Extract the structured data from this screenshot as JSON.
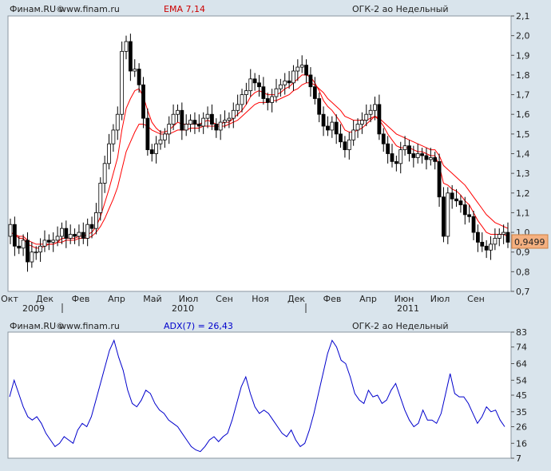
{
  "colors": {
    "background": "#d9e4ec",
    "plot_bg": "#ffffff",
    "candle": "#000000",
    "ema": "#ff0000",
    "adx": "#0000cc",
    "header_red": "#cc0000",
    "header_blue": "#0000cc",
    "price_badge": "#f4b080"
  },
  "price_panel": {
    "source": "Финам.RU©",
    "site": "www.finam.ru",
    "indicator": "EMA 7,14",
    "instrument": "ОГК-2 ао Недельный",
    "current_price": "0,9499"
  },
  "adx_panel": {
    "source": "Финам.RU©",
    "site": "www.finam.ru",
    "indicator": "ADX(7) = 26,43",
    "instrument": "ОГК-2 ао Недельный"
  },
  "chart_data": [
    {
      "type": "candlestick",
      "title": "ОГК-2 ао Недельный",
      "indicator": "EMA 7,14",
      "ylim": [
        0.7,
        2.1
      ],
      "y_ticks": [
        "2,1",
        "2,0",
        "1,9",
        "1,8",
        "1,7",
        "1,6",
        "1,5",
        "1,4",
        "1,3",
        "1,2",
        "1,1",
        "1,0",
        "0,9",
        "0,8",
        "0,7"
      ],
      "x_ticks": [
        "Окт",
        "Дек",
        "Фев",
        "Апр",
        "Май",
        "Июл",
        "Сен",
        "Ноя",
        "Дек",
        "Фев",
        "Апр",
        "Июн",
        "Июл",
        "Сен"
      ],
      "years": [
        "2009",
        "2010",
        "2011"
      ],
      "close": [
        1.04,
        0.93,
        0.92,
        0.96,
        0.85,
        0.9,
        0.9,
        0.93,
        0.96,
        0.95,
        0.96,
        0.98,
        1.02,
        0.97,
        0.99,
        0.98,
        1.0,
        0.97,
        1.04,
        1.02,
        1.1,
        1.25,
        1.35,
        1.45,
        1.52,
        1.6,
        1.92,
        1.97,
        1.82,
        1.83,
        1.75,
        1.58,
        1.42,
        1.4,
        1.45,
        1.47,
        1.5,
        1.55,
        1.6,
        1.62,
        1.52,
        1.55,
        1.57,
        1.55,
        1.54,
        1.58,
        1.6,
        1.55,
        1.52,
        1.56,
        1.57,
        1.58,
        1.62,
        1.65,
        1.7,
        1.72,
        1.78,
        1.76,
        1.74,
        1.68,
        1.66,
        1.69,
        1.73,
        1.75,
        1.77,
        1.76,
        1.82,
        1.84,
        1.85,
        1.8,
        1.74,
        1.68,
        1.6,
        1.54,
        1.52,
        1.56,
        1.5,
        1.46,
        1.42,
        1.47,
        1.52,
        1.55,
        1.57,
        1.6,
        1.62,
        1.65,
        1.5,
        1.45,
        1.4,
        1.36,
        1.35,
        1.42,
        1.44,
        1.4,
        1.38,
        1.4,
        1.39,
        1.37,
        1.38,
        1.36,
        1.18,
        0.98,
        1.2,
        1.17,
        1.16,
        1.14,
        1.09,
        1.08,
        1.0,
        0.95,
        0.93,
        0.91,
        0.94,
        0.97,
        0.99,
        1.0,
        0.95
      ],
      "open": [
        0.98,
        1.04,
        0.93,
        0.92,
        0.96,
        0.85,
        0.9,
        0.9,
        0.93,
        0.96,
        0.95,
        0.96,
        0.98,
        1.02,
        0.97,
        0.99,
        0.98,
        1.0,
        0.97,
        1.04,
        1.02,
        1.1,
        1.25,
        1.35,
        1.45,
        1.52,
        1.6,
        1.92,
        1.97,
        1.82,
        1.83,
        1.75,
        1.58,
        1.42,
        1.4,
        1.45,
        1.47,
        1.5,
        1.55,
        1.6,
        1.62,
        1.52,
        1.55,
        1.57,
        1.55,
        1.54,
        1.58,
        1.6,
        1.55,
        1.52,
        1.56,
        1.57,
        1.58,
        1.62,
        1.65,
        1.7,
        1.72,
        1.78,
        1.76,
        1.74,
        1.68,
        1.66,
        1.69,
        1.73,
        1.75,
        1.77,
        1.76,
        1.82,
        1.84,
        1.85,
        1.8,
        1.74,
        1.68,
        1.6,
        1.54,
        1.52,
        1.56,
        1.5,
        1.46,
        1.42,
        1.47,
        1.52,
        1.55,
        1.57,
        1.6,
        1.62,
        1.65,
        1.5,
        1.45,
        1.4,
        1.36,
        1.35,
        1.42,
        1.44,
        1.4,
        1.38,
        1.4,
        1.39,
        1.37,
        1.38,
        1.36,
        1.18,
        0.98,
        1.2,
        1.17,
        1.16,
        1.14,
        1.09,
        1.08,
        1.0,
        0.95,
        0.93,
        0.91,
        0.94,
        0.97,
        0.99,
        1.0
      ],
      "ema_fast": [
        1.0,
        0.99,
        0.97,
        0.97,
        0.94,
        0.93,
        0.92,
        0.92,
        0.93,
        0.94,
        0.94,
        0.95,
        0.97,
        0.97,
        0.97,
        0.97,
        0.98,
        0.98,
        0.99,
        1.0,
        1.03,
        1.08,
        1.15,
        1.22,
        1.3,
        1.38,
        1.52,
        1.63,
        1.68,
        1.72,
        1.73,
        1.69,
        1.62,
        1.56,
        1.53,
        1.51,
        1.51,
        1.52,
        1.54,
        1.56,
        1.55,
        1.55,
        1.55,
        1.55,
        1.55,
        1.56,
        1.57,
        1.56,
        1.55,
        1.55,
        1.56,
        1.56,
        1.58,
        1.6,
        1.62,
        1.65,
        1.69,
        1.71,
        1.72,
        1.71,
        1.7,
        1.7,
        1.7,
        1.71,
        1.73,
        1.74,
        1.76,
        1.78,
        1.8,
        1.8,
        1.79,
        1.76,
        1.72,
        1.67,
        1.64,
        1.62,
        1.59,
        1.56,
        1.52,
        1.51,
        1.51,
        1.52,
        1.53,
        1.55,
        1.57,
        1.59,
        1.57,
        1.54,
        1.5,
        1.47,
        1.44,
        1.43,
        1.43,
        1.43,
        1.42,
        1.41,
        1.41,
        1.4,
        1.39,
        1.39,
        1.34,
        1.25,
        1.24,
        1.22,
        1.21,
        1.19,
        1.16,
        1.14,
        1.1,
        1.06,
        1.03,
        1.0,
        0.99,
        0.99,
        0.99,
        0.99,
        0.98
      ],
      "ema_slow": [
        1.0,
        0.99,
        0.98,
        0.98,
        0.96,
        0.95,
        0.94,
        0.94,
        0.94,
        0.94,
        0.94,
        0.95,
        0.95,
        0.96,
        0.96,
        0.96,
        0.97,
        0.97,
        0.97,
        0.98,
        1.0,
        1.03,
        1.07,
        1.12,
        1.17,
        1.23,
        1.32,
        1.41,
        1.46,
        1.51,
        1.55,
        1.55,
        1.54,
        1.52,
        1.51,
        1.5,
        1.5,
        1.5,
        1.51,
        1.52,
        1.52,
        1.52,
        1.53,
        1.53,
        1.53,
        1.54,
        1.54,
        1.54,
        1.54,
        1.54,
        1.54,
        1.55,
        1.56,
        1.57,
        1.59,
        1.61,
        1.63,
        1.65,
        1.66,
        1.66,
        1.66,
        1.67,
        1.67,
        1.68,
        1.69,
        1.7,
        1.72,
        1.73,
        1.75,
        1.76,
        1.76,
        1.75,
        1.73,
        1.71,
        1.68,
        1.66,
        1.64,
        1.62,
        1.59,
        1.58,
        1.57,
        1.57,
        1.57,
        1.57,
        1.58,
        1.59,
        1.58,
        1.56,
        1.54,
        1.52,
        1.5,
        1.49,
        1.48,
        1.47,
        1.46,
        1.45,
        1.44,
        1.43,
        1.42,
        1.42,
        1.39,
        1.34,
        1.32,
        1.3,
        1.28,
        1.26,
        1.24,
        1.21,
        1.18,
        1.15,
        1.12,
        1.09,
        1.07,
        1.05,
        1.04,
        1.03,
        1.02
      ]
    },
    {
      "type": "line",
      "title": "ОГК-2 ао Недельный",
      "indicator": "ADX(7) = 26,43",
      "ylim": [
        7,
        83
      ],
      "y_ticks": [
        "83",
        "74",
        "64",
        "54",
        "45",
        "35",
        "26",
        "16",
        "7"
      ],
      "series": [
        {
          "name": "ADX(7)",
          "values": [
            44,
            54,
            46,
            38,
            32,
            30,
            32,
            28,
            22,
            18,
            14,
            16,
            20,
            18,
            16,
            24,
            28,
            26,
            32,
            42,
            52,
            62,
            72,
            78,
            68,
            60,
            48,
            40,
            38,
            42,
            48,
            46,
            40,
            36,
            34,
            30,
            28,
            26,
            22,
            18,
            14,
            12,
            11,
            14,
            18,
            20,
            17,
            20,
            22,
            30,
            40,
            50,
            56,
            46,
            38,
            34,
            36,
            34,
            30,
            26,
            22,
            20,
            24,
            18,
            14,
            16,
            24,
            34,
            46,
            58,
            70,
            78,
            74,
            66,
            64,
            56,
            46,
            42,
            40,
            48,
            44,
            45,
            40,
            42,
            48,
            52,
            44,
            36,
            30,
            26,
            28,
            36,
            30,
            30,
            28,
            34,
            46,
            58,
            46,
            44,
            44,
            40,
            34,
            28,
            32,
            38,
            35,
            36,
            30,
            26
          ]
        }
      ]
    }
  ]
}
